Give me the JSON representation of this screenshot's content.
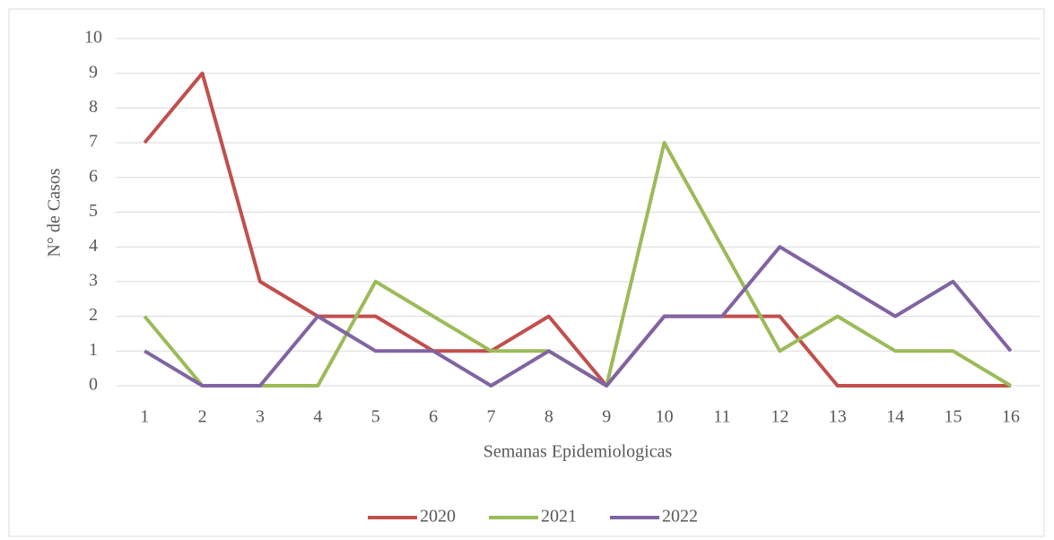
{
  "chart_data": {
    "type": "line",
    "x_label": "Semanas Epidemiologicas",
    "y_label": "N° de Casos",
    "categories": [
      1,
      2,
      3,
      4,
      5,
      6,
      7,
      8,
      9,
      10,
      11,
      12,
      13,
      14,
      15,
      16
    ],
    "series": [
      {
        "name": "2020",
        "color": "#c0504d",
        "values": [
          7,
          9,
          3,
          2,
          2,
          1,
          1,
          2,
          0,
          2,
          2,
          2,
          0,
          0,
          0,
          0
        ]
      },
      {
        "name": "2021",
        "color": "#9bbb59",
        "values": [
          2,
          0,
          0,
          0,
          3,
          2,
          1,
          1,
          0,
          7,
          4,
          1,
          2,
          1,
          1,
          0
        ]
      },
      {
        "name": "2022",
        "color": "#8064a2",
        "values": [
          1,
          0,
          0,
          2,
          1,
          1,
          0,
          1,
          0,
          2,
          2,
          4,
          3,
          2,
          3,
          1
        ]
      }
    ],
    "ylim": [
      0,
      10
    ],
    "yticks": [
      0,
      1,
      2,
      3,
      4,
      5,
      6,
      7,
      8,
      9,
      10
    ],
    "grid": true,
    "legend": "bottom"
  }
}
